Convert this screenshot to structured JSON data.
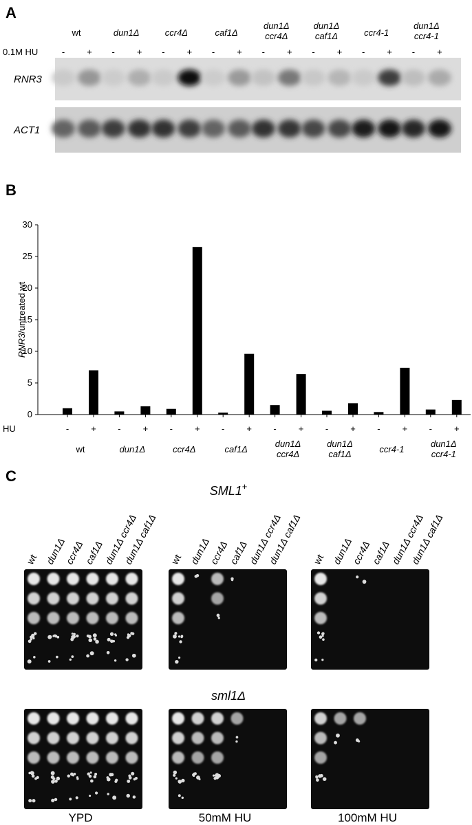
{
  "panel_a": {
    "label": "A",
    "treatment_label": "0.1M HU",
    "strains": [
      [
        "wt"
      ],
      [
        "dun1Δ"
      ],
      [
        "ccr4Δ"
      ],
      [
        "caf1Δ"
      ],
      [
        "dun1Δ",
        "ccr4Δ"
      ],
      [
        "dun1Δ",
        "caf1Δ"
      ],
      [
        "ccr4-1"
      ],
      [
        "dun1Δ",
        "ccr4-1"
      ]
    ],
    "lanes": [
      "-",
      "+",
      "-",
      "+",
      "-",
      "+",
      "-",
      "+",
      "-",
      "+",
      "-",
      "+",
      "-",
      "+",
      "-",
      "+"
    ],
    "rows": [
      "RNR3",
      "ACT1"
    ]
  },
  "chart_data": {
    "type": "bar",
    "panel_label": "B",
    "y_label": [
      "RNR3",
      "/untreated wt"
    ],
    "x_row_label": "HU",
    "categories": [
      "-",
      "+",
      "-",
      "+",
      "-",
      "+",
      "-",
      "+",
      "-",
      "+",
      "-",
      "+",
      "-",
      "+",
      "-",
      "+"
    ],
    "groups": [
      [
        "wt"
      ],
      [
        "dun1Δ"
      ],
      [
        "ccr4Δ"
      ],
      [
        "caf1Δ"
      ],
      [
        "dun1Δ",
        "ccr4Δ"
      ],
      [
        "dun1Δ",
        "caf1Δ"
      ],
      [
        "ccr4-1"
      ],
      [
        "dun1Δ",
        "ccr4-1"
      ]
    ],
    "values": [
      1.0,
      7.0,
      0.5,
      1.3,
      0.9,
      26.5,
      0.3,
      9.6,
      1.5,
      6.4,
      0.6,
      1.8,
      0.4,
      7.4,
      0.8,
      2.3
    ],
    "color": "#000000",
    "ylim": [
      0,
      30
    ],
    "yticks": [
      0,
      5,
      10,
      15,
      20,
      25,
      30
    ]
  },
  "panel_c": {
    "label": "C",
    "top_title": "SML1",
    "top_title_sup": "+",
    "bottom_title": "sml1Δ",
    "strains": [
      "wt",
      "dun1Δ",
      "ccr4Δ",
      "caf1Δ",
      "dun1Δ ccr4Δ",
      "dun1Δ caf1Δ"
    ],
    "plates": [
      "YPD",
      "50mM HU",
      "100mM HU"
    ]
  }
}
